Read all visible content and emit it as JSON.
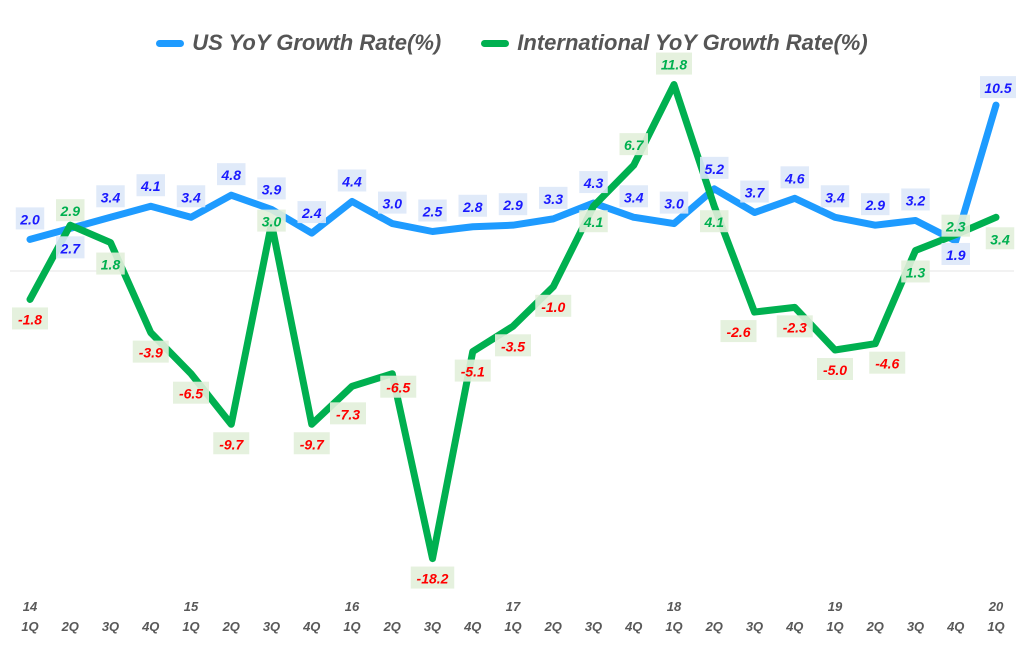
{
  "chart_data": {
    "type": "line",
    "title": "",
    "xlabel": "",
    "ylabel": "",
    "legend_position": "top",
    "grid": false,
    "ylim": [
      -19,
      13
    ],
    "categories": [
      {
        "year": "14",
        "q": "1Q"
      },
      {
        "year": "",
        "q": "2Q"
      },
      {
        "year": "",
        "q": "3Q"
      },
      {
        "year": "",
        "q": "4Q"
      },
      {
        "year": "15",
        "q": "1Q"
      },
      {
        "year": "",
        "q": "2Q"
      },
      {
        "year": "",
        "q": "3Q"
      },
      {
        "year": "",
        "q": "4Q"
      },
      {
        "year": "16",
        "q": "1Q"
      },
      {
        "year": "",
        "q": "2Q"
      },
      {
        "year": "",
        "q": "3Q"
      },
      {
        "year": "",
        "q": "4Q"
      },
      {
        "year": "17",
        "q": "1Q"
      },
      {
        "year": "",
        "q": "2Q"
      },
      {
        "year": "",
        "q": "3Q"
      },
      {
        "year": "",
        "q": "4Q"
      },
      {
        "year": "18",
        "q": "1Q"
      },
      {
        "year": "",
        "q": "2Q"
      },
      {
        "year": "",
        "q": "3Q"
      },
      {
        "year": "",
        "q": "4Q"
      },
      {
        "year": "19",
        "q": "1Q"
      },
      {
        "year": "",
        "q": "2Q"
      },
      {
        "year": "",
        "q": "3Q"
      },
      {
        "year": "",
        "q": "4Q"
      },
      {
        "year": "20",
        "q": "1Q"
      }
    ],
    "series": [
      {
        "name": "US YoY Growth Rate(%)",
        "color": "#1e9bff",
        "label_color": "#1a1aff",
        "label_bg": "#dde8f8",
        "values": [
          2.0,
          2.7,
          3.4,
          4.1,
          3.4,
          4.8,
          3.9,
          2.4,
          4.4,
          3.0,
          2.5,
          2.8,
          2.9,
          3.3,
          4.3,
          3.4,
          3.0,
          5.2,
          3.7,
          4.6,
          3.4,
          2.9,
          3.2,
          1.9,
          10.5
        ]
      },
      {
        "name": "International YoY Growth Rate(%)",
        "color": "#00b050",
        "label_color": "#00b050",
        "negative_label_color": "#ff0000",
        "label_bg": "#e2efda",
        "values": [
          -1.8,
          2.9,
          1.8,
          -3.9,
          -6.5,
          -9.7,
          3.0,
          -9.7,
          -7.3,
          -6.5,
          -18.2,
          -5.1,
          -3.5,
          -1.0,
          4.1,
          6.7,
          11.8,
          4.1,
          -2.6,
          -2.3,
          -5.0,
          -4.6,
          1.3,
          2.3,
          3.4
        ]
      }
    ]
  }
}
